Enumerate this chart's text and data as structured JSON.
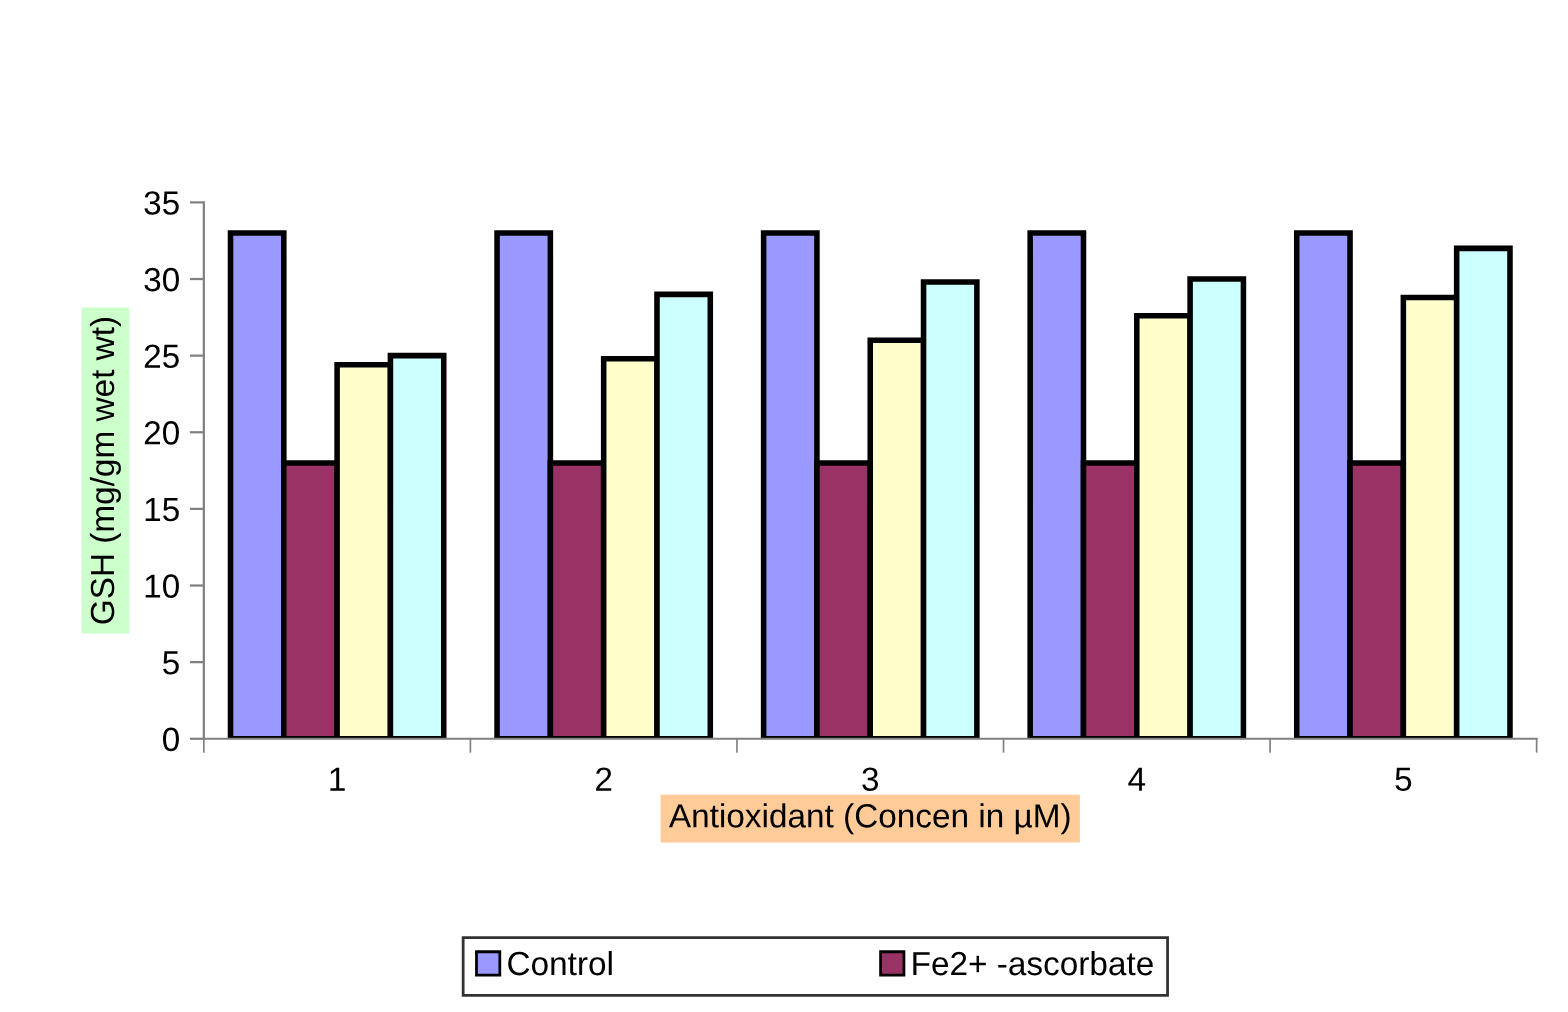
{
  "chart_data": {
    "type": "bar",
    "xlabel": "Antioxidant (Concen in µM)",
    "ylabel": "GSH (mg/gm wet wt)",
    "categories": [
      "1",
      "2",
      "3",
      "4",
      "5"
    ],
    "series": [
      {
        "name": "Control",
        "color": "#9999ff",
        "values": [
          33,
          33,
          33,
          33,
          33
        ]
      },
      {
        "name": "Fe2+ -ascorbate",
        "color": "#993366",
        "values": [
          18,
          18,
          18,
          18,
          18
        ]
      },
      {
        "color": "#ffffcc",
        "values": [
          24.4,
          24.8,
          26,
          27.6,
          28.8
        ]
      },
      {
        "color": "#ccffff",
        "values": [
          25,
          29,
          29.8,
          30,
          32
        ]
      }
    ],
    "ylim": [
      0,
      35
    ],
    "yticks": [
      0,
      5,
      10,
      15,
      20,
      25,
      30,
      35
    ],
    "grid": false,
    "legend": "bottom"
  }
}
